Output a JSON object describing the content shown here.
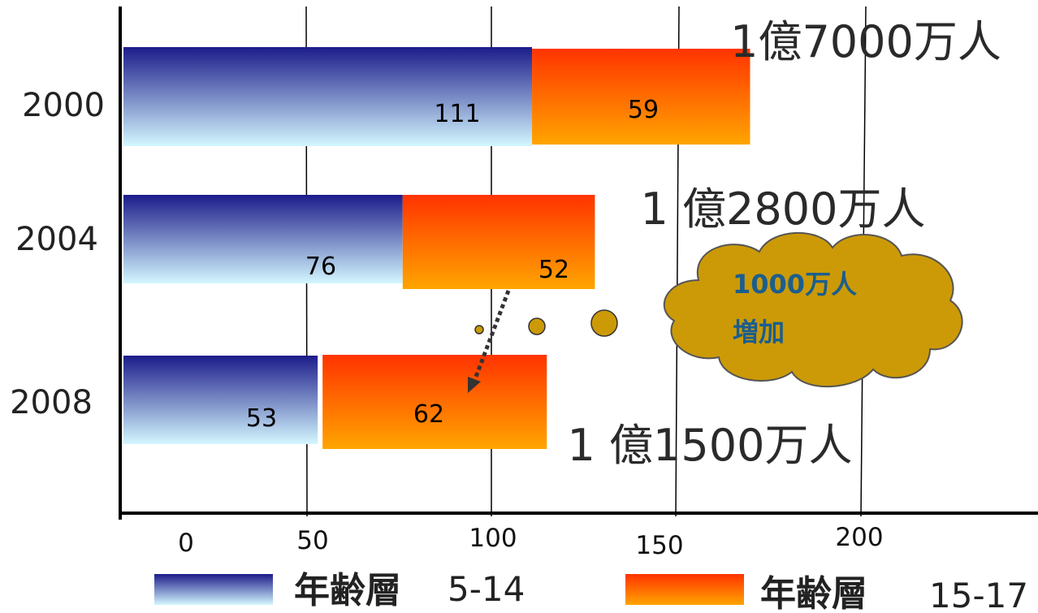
{
  "chart_data": {
    "type": "bar",
    "orientation": "horizontal",
    "stacked": true,
    "categories": [
      "2000",
      "2004",
      "2008"
    ],
    "series": [
      {
        "name": "年齢層 5-14",
        "values": [
          111,
          76,
          53
        ],
        "color_top": "#1c1c8a",
        "color_bottom": "#d4f7ff"
      },
      {
        "name": "年齢層 15-17",
        "values": [
          59,
          52,
          62
        ],
        "color_top": "#ff3300",
        "color_bottom": "#ffa500"
      }
    ],
    "totals_text": [
      "1億7000万人",
      "1 億2800万人",
      "1 億1500万人"
    ],
    "x_ticks": [
      "0",
      "50",
      "100",
      "150",
      "200"
    ],
    "xlim": [
      0,
      250
    ],
    "grid": true,
    "legend": "bottom",
    "annotation": {
      "lines": [
        "1000万人",
        "増加"
      ],
      "fill": "#cc9a06",
      "text_color": "#1b5e8e"
    }
  },
  "legend": {
    "items": [
      {
        "label": "年齢層",
        "range": "5-14"
      },
      {
        "label": "年齢層",
        "range": "15-17"
      }
    ]
  }
}
